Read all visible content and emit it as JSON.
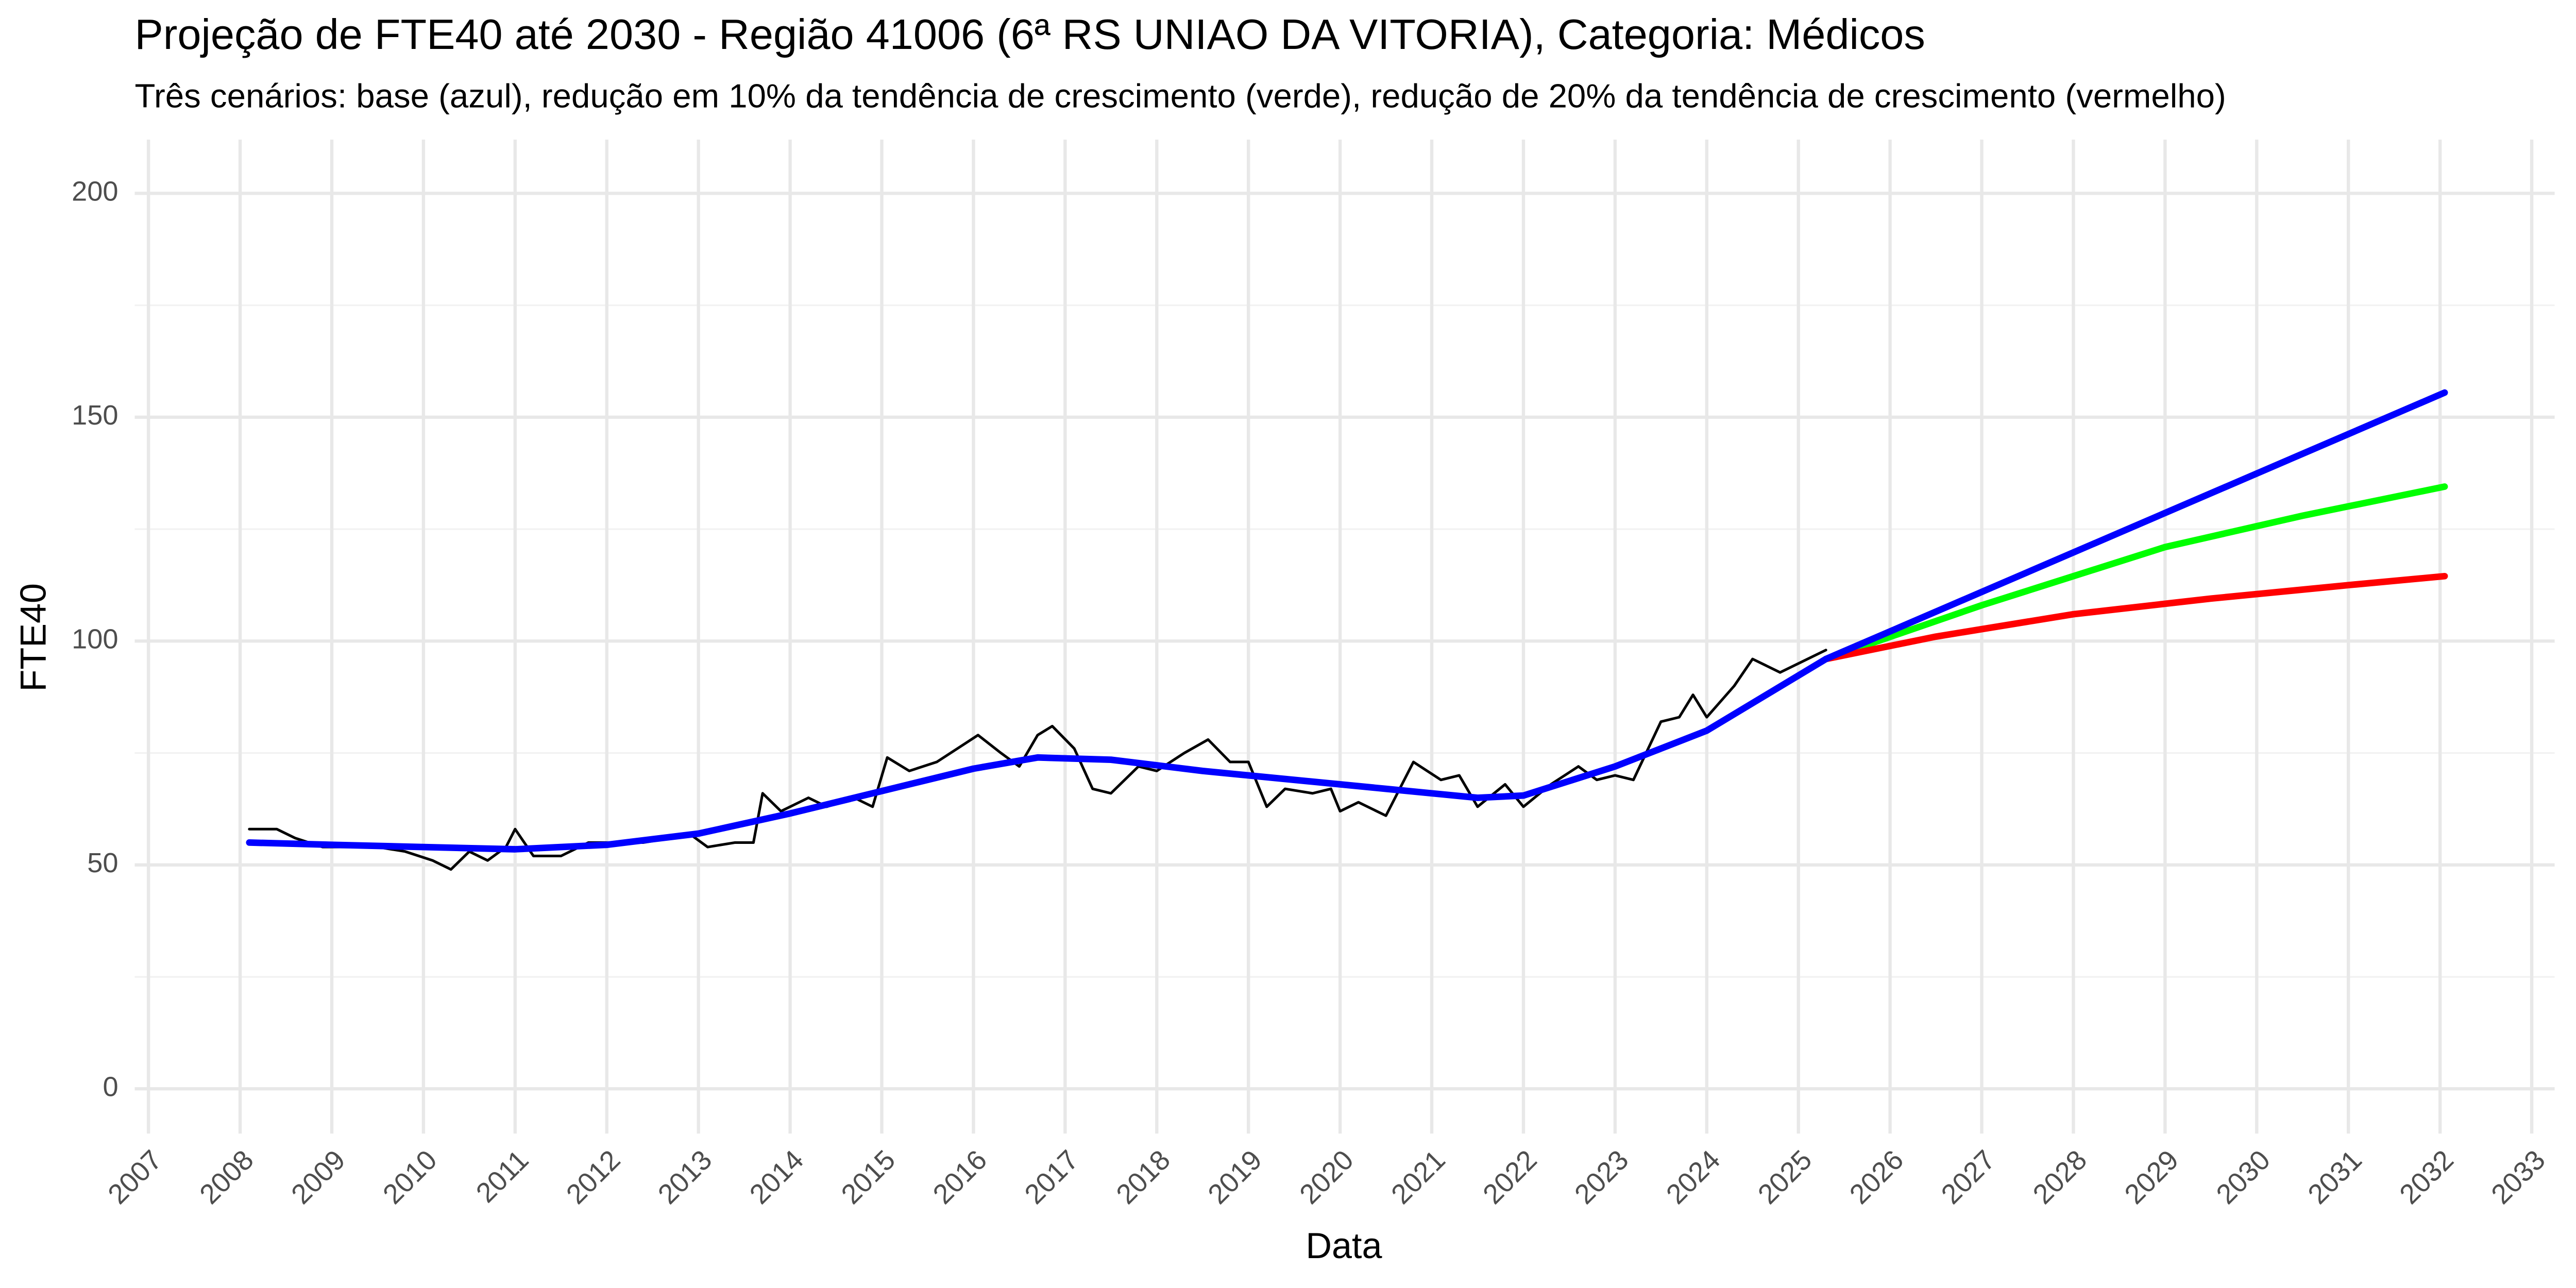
{
  "chart_data": {
    "type": "line",
    "title": "Projeção de FTE40 até 2030 - Região 41006 (6ª RS UNIAO DA VITORIA), Categoria: Médicos",
    "subtitle": "Três cenários: base (azul), redução em 10% da tendência de crescimento (verde), redução de 20% da tendência de crescimento (vermelho)",
    "x_label": "Data",
    "y_label": "FTE40",
    "xlim": [
      2006.85,
      2033.25
    ],
    "ylim": [
      -10,
      212
    ],
    "xticks": [
      2007,
      2008,
      2009,
      2010,
      2011,
      2012,
      2013,
      2014,
      2015,
      2016,
      2017,
      2018,
      2019,
      2020,
      2021,
      2022,
      2023,
      2024,
      2025,
      2026,
      2027,
      2028,
      2029,
      2030,
      2031,
      2032,
      2033
    ],
    "yticks": [
      0,
      50,
      100,
      150,
      200
    ],
    "yminor": [
      25,
      75,
      125,
      175
    ],
    "grid": true,
    "series": [
      {
        "color": "#000000",
        "width": 1.6,
        "x": [
          2008.1,
          2008.4,
          2008.6,
          2008.9,
          2009.2,
          2009.5,
          2009.8,
          2010.1,
          2010.3,
          2010.5,
          2010.7,
          2010.9,
          2011.0,
          2011.2,
          2011.5,
          2011.8,
          2012.1,
          2012.4,
          2012.7,
          2012.9,
          2013.1,
          2013.4,
          2013.6,
          2013.7,
          2013.9,
          2014.2,
          2014.4,
          2014.7,
          2014.9,
          2015.06,
          2015.3,
          2015.6,
          2015.9,
          2016.05,
          2016.3,
          2016.5,
          2016.7,
          2016.86,
          2017.1,
          2017.3,
          2017.5,
          2017.8,
          2018.0,
          2018.3,
          2018.56,
          2018.8,
          2019.0,
          2019.2,
          2019.4,
          2019.7,
          2019.9,
          2020.0,
          2020.2,
          2020.5,
          2020.8,
          2021.1,
          2021.3,
          2021.5,
          2021.8,
          2022.0,
          2022.3,
          2022.6,
          2022.8,
          2023.0,
          2023.2,
          2023.5,
          2023.7,
          2023.85,
          2024.0,
          2024.3,
          2024.5,
          2024.8,
          2025.0,
          2025.3
        ],
        "values": [
          58,
          58,
          56,
          54,
          54,
          54,
          53,
          51,
          49,
          53,
          51,
          54,
          58,
          52,
          52,
          55,
          55,
          55,
          56,
          57,
          54,
          55,
          55,
          66,
          62,
          65,
          63,
          65,
          63,
          74,
          71,
          73,
          77,
          79,
          75,
          72,
          79,
          81,
          76,
          67,
          66,
          72,
          71,
          75,
          78,
          73,
          73,
          63,
          67,
          66,
          67,
          62,
          64,
          61,
          73,
          69,
          70,
          63,
          68,
          63,
          68,
          72,
          69,
          70,
          69,
          82,
          83,
          88,
          83,
          90,
          96,
          93,
          95,
          98
        ]
      },
      {
        "color": "#00ff00",
        "width": 4,
        "x": [
          2025.3,
          2027,
          2029,
          2030.5,
          2032.05
        ],
        "values": [
          96,
          108,
          121,
          128,
          134.5
        ]
      },
      {
        "color": "#ff0000",
        "width": 4,
        "x": [
          2025.3,
          2026.5,
          2028,
          2029.5,
          2031,
          2032.05
        ],
        "values": [
          96,
          101,
          106,
          109.5,
          112.5,
          114.5
        ]
      },
      {
        "color": "#0000ff",
        "width": 4,
        "x": [
          2008.1,
          2009,
          2010,
          2011,
          2012,
          2013,
          2014,
          2015,
          2016,
          2016.7,
          2017.5,
          2018.5,
          2019.5,
          2020.5,
          2021.5,
          2022.0,
          2023,
          2024,
          2025.3,
          2032.05
        ],
        "values": [
          55,
          54.5,
          54,
          53.5,
          54.5,
          57,
          61.5,
          66.5,
          71.5,
          74,
          73.5,
          71,
          69,
          67,
          65,
          65.5,
          72,
          80,
          96,
          155.5
        ]
      }
    ]
  }
}
